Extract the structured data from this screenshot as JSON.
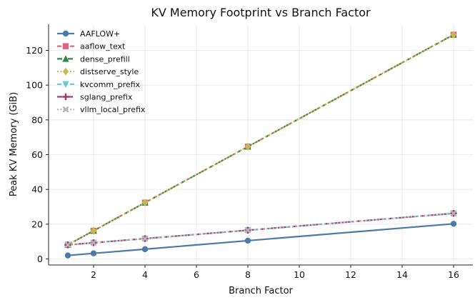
{
  "chart_data": {
    "type": "line",
    "title": "KV Memory Footprint vs Branch Factor",
    "xlabel": "Branch Factor",
    "ylabel": "Peak KV Memory (GiB)",
    "xlim": [
      0.25,
      16.75
    ],
    "ylim": [
      -3.5,
      135
    ],
    "xticks": [
      2,
      4,
      6,
      8,
      10,
      12,
      14,
      16
    ],
    "yticks": [
      0,
      20,
      40,
      60,
      80,
      100,
      120
    ],
    "grid": true,
    "legend_position": "top-left",
    "x": [
      1,
      2,
      4,
      8,
      16
    ],
    "series": [
      {
        "name": "AAFLOW+",
        "values": [
          2,
          3.2,
          5.6,
          10.5,
          20.2
        ],
        "color": "#4e79a7",
        "marker": "circle",
        "dash": "solid"
      },
      {
        "name": "aaflow_text",
        "values": [
          8.1,
          16.2,
          32.4,
          64.6,
          129
        ],
        "color": "#e15f7f",
        "marker": "square",
        "dash": "dashed"
      },
      {
        "name": "dense_prefill",
        "values": [
          8.1,
          16.2,
          32.4,
          64.6,
          129
        ],
        "color": "#2e8b3f",
        "marker": "triangle-up",
        "dash": "dashdot"
      },
      {
        "name": "distserve_style",
        "values": [
          8.1,
          16.2,
          32.4,
          64.6,
          129
        ],
        "color": "#c9b655",
        "marker": "diamond",
        "dash": "dotted"
      },
      {
        "name": "kvcomm_prefix",
        "values": [
          8.1,
          9.3,
          11.7,
          16.5,
          26.2
        ],
        "color": "#6fc7d9",
        "marker": "triangle-down",
        "dash": "dashed"
      },
      {
        "name": "sglang_prefix",
        "values": [
          8.1,
          9.3,
          11.7,
          16.5,
          26.2
        ],
        "color": "#a23b72",
        "marker": "plus",
        "dash": "dashdot"
      },
      {
        "name": "vllm_local_prefix",
        "values": [
          8.1,
          9.3,
          11.7,
          16.5,
          26.2
        ],
        "color": "#b5b5b5",
        "marker": "x",
        "dash": "dotted"
      }
    ]
  }
}
